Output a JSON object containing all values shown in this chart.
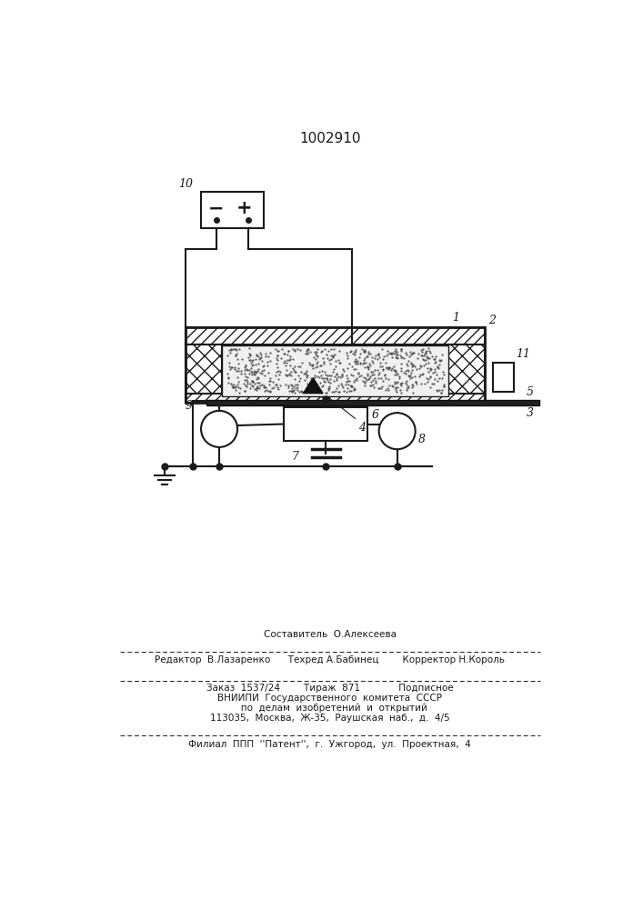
{
  "patent_number": "1002910",
  "bg_color": "#ffffff",
  "line_color": "#1a1a1a",
  "footer_lines": [
    "Составитель  О.Алексеева",
    "Редактор  В.Лазаренко      Техред А.Бабинец        Корректор Н.Король",
    "Заказ  1537/24        Тираж  871             Подписное",
    "ВНИИПИ  Государственного  комитета  СССР",
    "   по  делам  изобретений  и  открытий",
    "113035,  Москва,  Ж-35,  Раушская  наб.,  д.  4/5",
    "Филиал  ППП  ''Патент'',  г.  Ужгород,  ул.  Проектная,  4"
  ]
}
